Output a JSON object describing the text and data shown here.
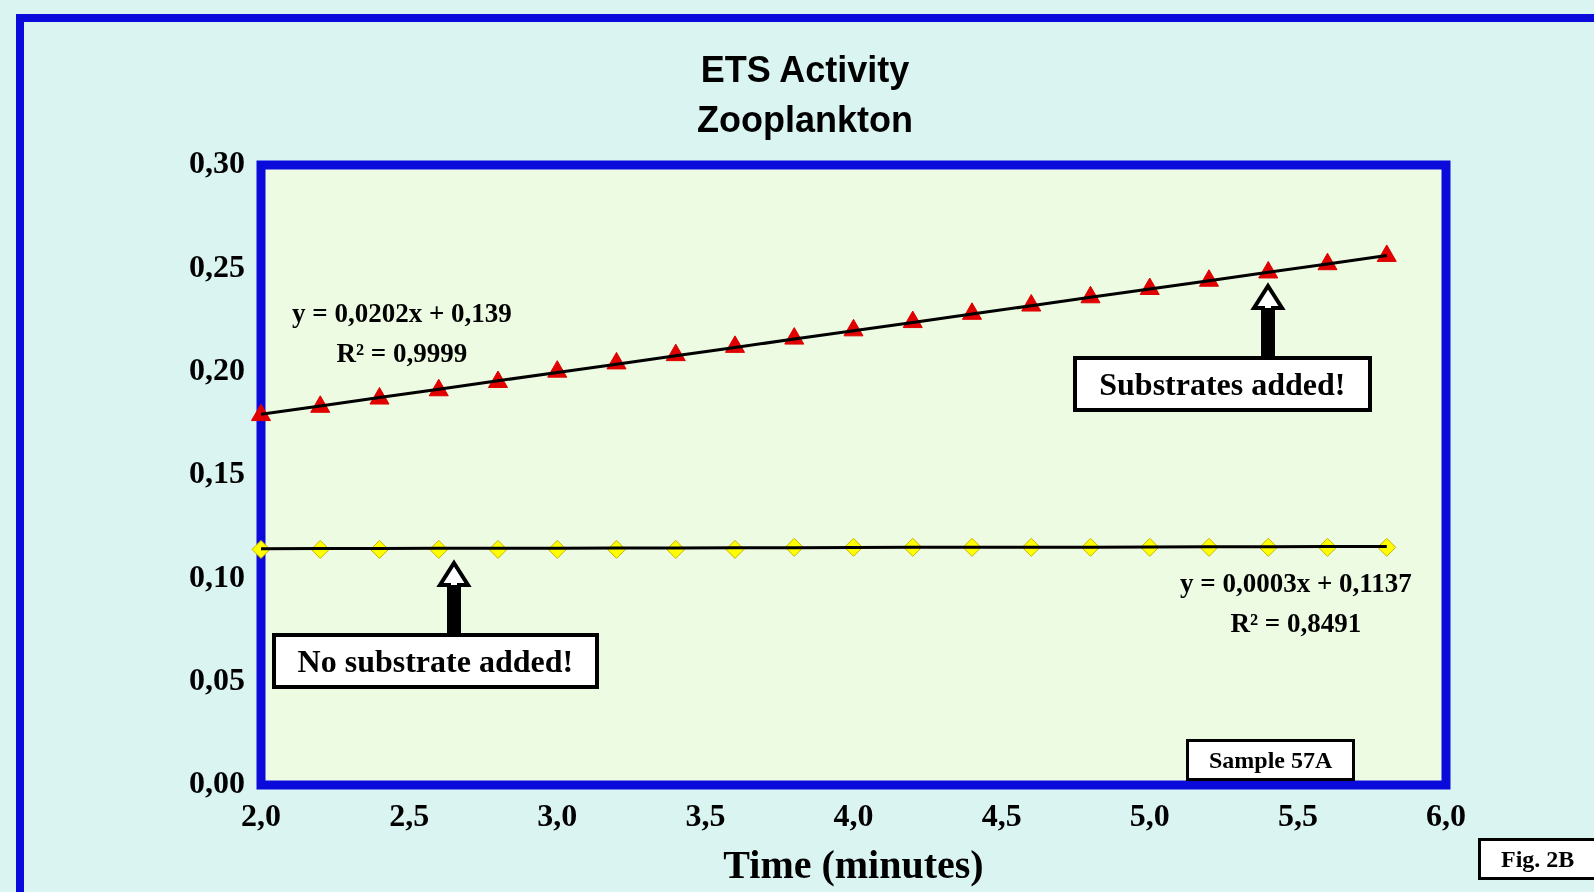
{
  "chart_data": {
    "type": "scatter",
    "title": [
      "ETS Activity",
      "Zooplankton"
    ],
    "xlabel": "Time (minutes)",
    "x": [
      2.0,
      2.2,
      2.4,
      2.6,
      2.8,
      3.0,
      3.2,
      3.4,
      3.6,
      3.8,
      4.0,
      4.2,
      4.4,
      4.6,
      4.8,
      5.0,
      5.2,
      5.4,
      5.6,
      5.8
    ],
    "series": [
      {
        "type": "scatter",
        "color": "#e00000",
        "marker": "triangle",
        "values": [
          0.179,
          0.183,
          0.187,
          0.191,
          0.195,
          0.2,
          0.204,
          0.208,
          0.212,
          0.216,
          0.22,
          0.224,
          0.228,
          0.232,
          0.236,
          0.24,
          0.244,
          0.248,
          0.252,
          0.256
        ]
      },
      {
        "type": "scatter",
        "color": "#ffff00",
        "marker": "diamond",
        "values": [
          0.114,
          0.114,
          0.114,
          0.114,
          0.114,
          0.114,
          0.114,
          0.114,
          0.114,
          0.115,
          0.115,
          0.115,
          0.115,
          0.115,
          0.115,
          0.115,
          0.115,
          0.115,
          0.115,
          0.115
        ]
      },
      {
        "type": "line",
        "color": "#000000",
        "marker": "none",
        "values": [
          0.1794,
          0.1834,
          0.1875,
          0.1915,
          0.1956,
          0.1996,
          0.2036,
          0.2077,
          0.2117,
          0.2158,
          0.2198,
          0.2238,
          0.2279,
          0.2319,
          0.236,
          0.24,
          0.244,
          0.2481,
          0.2521,
          0.2562
        ]
      },
      {
        "type": "line",
        "color": "#000000",
        "marker": "none",
        "values": [
          0.1143,
          0.1144,
          0.1144,
          0.1145,
          0.1145,
          0.1146,
          0.1147,
          0.1147,
          0.1148,
          0.1148,
          0.1149,
          0.115,
          0.115,
          0.1151,
          0.1151,
          0.1152,
          0.1153,
          0.1153,
          0.1154,
          0.1154
        ]
      }
    ],
    "xlim": [
      2.0,
      6.0
    ],
    "xticks": [
      {
        "value": 2.0,
        "label": "2,0"
      },
      {
        "value": 2.5,
        "label": "2,5"
      },
      {
        "value": 3.0,
        "label": "3,0"
      },
      {
        "value": 3.5,
        "label": "3,5"
      },
      {
        "value": 4.0,
        "label": "4,0"
      },
      {
        "value": 4.5,
        "label": "4,5"
      },
      {
        "value": 5.0,
        "label": "5,0"
      },
      {
        "value": 5.5,
        "label": "5,5"
      },
      {
        "value": 6.0,
        "label": "6,0"
      }
    ],
    "ylim": [
      0,
      0.3
    ],
    "yticks": [
      {
        "value": 0,
        "label": "0,00"
      },
      {
        "value": 0.05,
        "label": "0,05"
      },
      {
        "value": 0.1,
        "label": "0,10"
      },
      {
        "value": 0.15,
        "label": "0,15"
      },
      {
        "value": 0.2,
        "label": "0,20"
      },
      {
        "value": 0.25,
        "label": "0,25"
      },
      {
        "value": 0.3,
        "label": "0,30"
      }
    ],
    "grid": false,
    "legend": false,
    "annotations": [
      "y = 0,0202x + 0,139\nR² = 0,9999",
      {
        "text": "Substrates added!",
        "x": 5.4,
        "y": 0.248
      },
      {
        "text": "No substrate added!",
        "x": 2.65,
        "y": 0.114
      },
      "y = 0,0003x + 0,1137\nR² = 0,8491",
      "Sample 57A",
      "Fig. 2B"
    ]
  }
}
